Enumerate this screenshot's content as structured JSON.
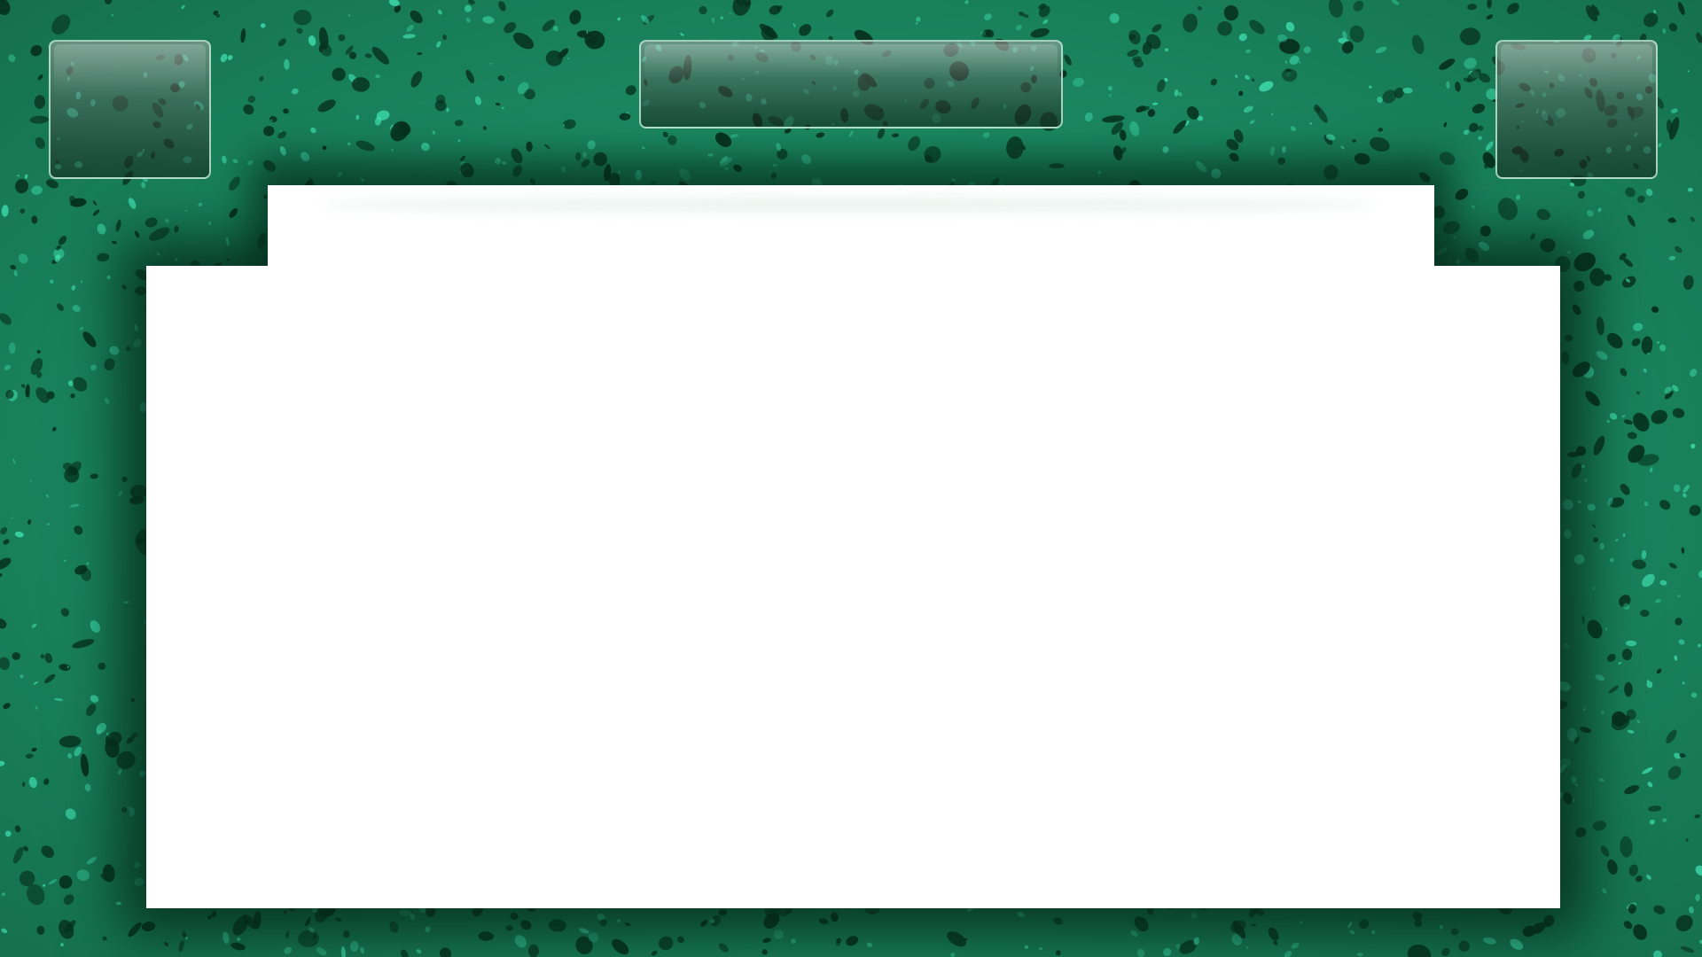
{
  "theme": {
    "frame_color": "#1f8f69",
    "speckle_light": "#3fe0b0",
    "speckle_dark": "#06301f",
    "content_color": "#ffffff",
    "panel_border": "#bfe6d7"
  },
  "panels": {
    "left": {
      "label": ""
    },
    "center": {
      "label": ""
    },
    "right": {
      "label": ""
    }
  },
  "content": {
    "text": ""
  }
}
